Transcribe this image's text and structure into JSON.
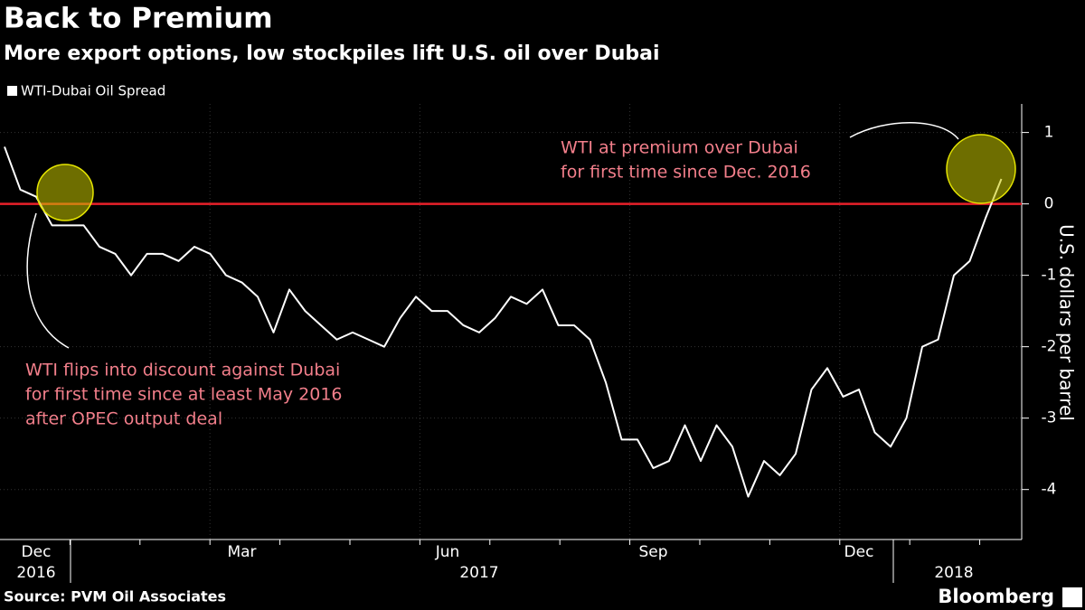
{
  "chart_data": {
    "type": "line",
    "title": "Back to Premium",
    "subtitle": "More export options, low stockpiles lift U.S. oil over Dubai",
    "y_label": "U.S. dollars per barrel",
    "source": "Source:  PVM Oil Associates",
    "brand": "Bloomberg",
    "categories": [
      "",
      null,
      "Dec",
      null,
      null,
      null,
      null,
      null,
      null,
      null,
      null,
      null,
      null,
      null,
      null,
      "Mar",
      null,
      null,
      null,
      null,
      null,
      null,
      null,
      null,
      null,
      null,
      null,
      null,
      "Jun",
      null,
      null,
      null,
      null,
      null,
      null,
      null,
      null,
      null,
      null,
      null,
      null,
      "Sep",
      null,
      null,
      null,
      null,
      null,
      null,
      null,
      null,
      null,
      null,
      null,
      null,
      "Dec",
      null,
      null,
      null,
      null,
      null,
      null,
      null,
      null,
      null
    ],
    "year_labels": [
      {
        "label": "2016",
        "at": 2
      },
      {
        "label": "2017",
        "at": 30
      },
      {
        "label": "2018",
        "at": 60
      }
    ],
    "series": [
      {
        "name": "WTI-Dubai Oil Spread",
        "color": "#ffffff",
        "values": [
          0.8,
          0.2,
          0.1,
          -0.3,
          -0.3,
          -0.3,
          -0.6,
          -0.7,
          -1.0,
          -0.7,
          -0.7,
          -0.8,
          -0.6,
          -0.7,
          -1.0,
          -1.1,
          -1.3,
          -1.8,
          -1.2,
          -1.5,
          -1.7,
          -1.9,
          -1.8,
          -1.9,
          -2.0,
          -1.6,
          -1.3,
          -1.5,
          -1.5,
          -1.7,
          -1.8,
          -1.6,
          -1.3,
          -1.4,
          -1.2,
          -1.7,
          -1.7,
          -1.9,
          -2.5,
          -3.3,
          -3.3,
          -3.7,
          -3.6,
          -3.1,
          -3.6,
          -3.1,
          -3.4,
          -4.1,
          -3.6,
          -3.8,
          -3.5,
          -2.6,
          -2.3,
          -2.7,
          -2.6,
          -3.2,
          -3.4,
          -3.0,
          -2.0,
          -1.9,
          -1.0,
          -0.8,
          -0.2,
          0.35
        ]
      }
    ],
    "reference_line": {
      "value": 0,
      "color": "#e8202a"
    },
    "annotations": [
      [
        "WTI flips into discount against Dubai",
        "for first time since at least May 2016",
        "after OPEC output deal"
      ],
      [
        "WTI at premium over Dubai",
        "for first time since Dec. 2016"
      ]
    ],
    "ylim": [
      -4.7,
      1.4
    ],
    "yticks": [
      1,
      0,
      -1,
      -2,
      -3,
      -4
    ],
    "grid": true
  }
}
